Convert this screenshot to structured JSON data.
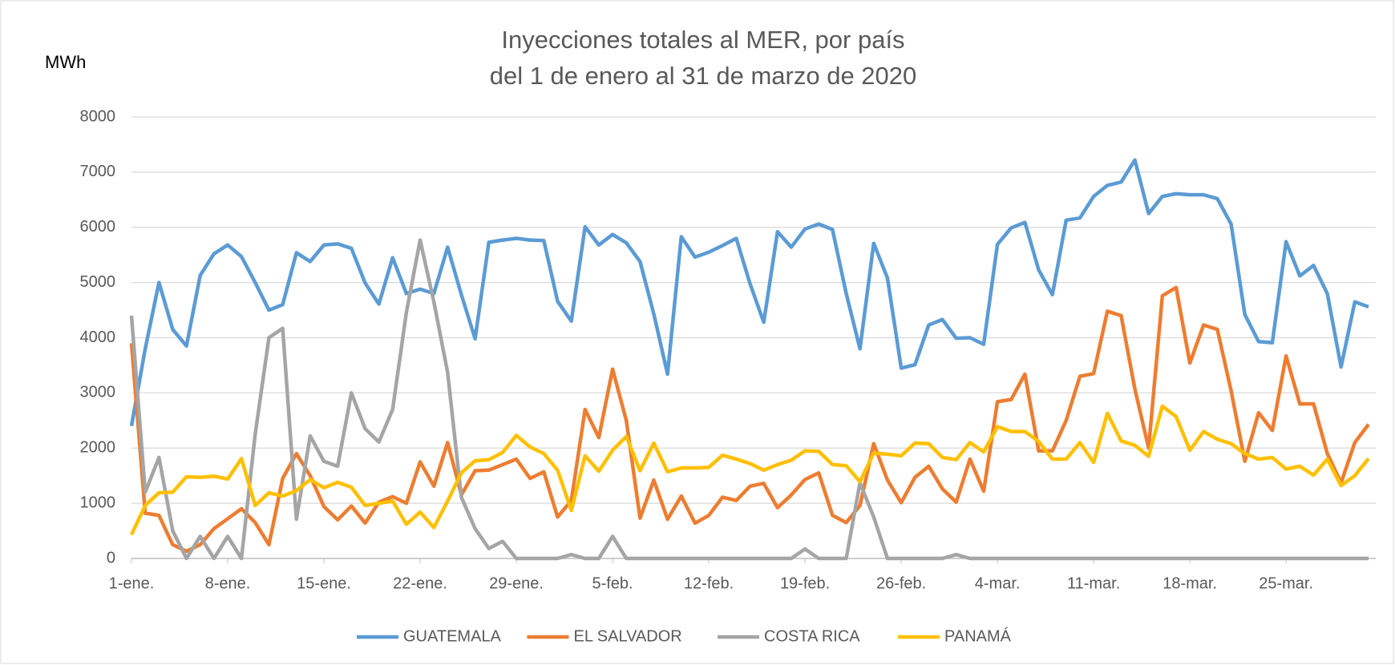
{
  "chart_data": {
    "type": "line",
    "title": "Inyecciones totales al MER, por país",
    "subtitle": "del 1 de enero al 31 de marzo de 2020",
    "y_label": "MWh",
    "categories": [
      "1-ene.",
      null,
      null,
      null,
      null,
      null,
      null,
      "8-ene.",
      null,
      null,
      null,
      null,
      null,
      null,
      "15-ene.",
      null,
      null,
      null,
      null,
      null,
      null,
      "22-ene.",
      null,
      null,
      null,
      null,
      null,
      null,
      "29-ene.",
      null,
      null,
      null,
      null,
      null,
      null,
      "5-feb.",
      null,
      null,
      null,
      null,
      null,
      null,
      "12-feb.",
      null,
      null,
      null,
      null,
      null,
      null,
      "19-feb.",
      null,
      null,
      null,
      null,
      null,
      null,
      "26-feb.",
      null,
      null,
      null,
      null,
      null,
      null,
      "4-mar.",
      null,
      null,
      null,
      null,
      null,
      null,
      "11-mar.",
      null,
      null,
      null,
      null,
      null,
      null,
      "18-mar.",
      null,
      null,
      null,
      null,
      null,
      null,
      "25-mar.",
      null,
      null,
      null,
      null,
      null,
      null
    ],
    "series": [
      {
        "name": "GUATEMALA",
        "color": "#5b9bd5",
        "values": [
          2400,
          3800,
          5000,
          4150,
          3850,
          5130,
          5520,
          5680,
          5470,
          5000,
          4500,
          4600,
          5540,
          5380,
          5680,
          5700,
          5620,
          4990,
          4610,
          5450,
          4800,
          4880,
          4800,
          5640,
          4780,
          3980,
          5730,
          5770,
          5800,
          5770,
          5760,
          4660,
          4300,
          6010,
          5680,
          5870,
          5720,
          5380,
          4430,
          3340,
          5830,
          5460,
          5550,
          5670,
          5800,
          4980,
          4280,
          5920,
          5640,
          5970,
          6060,
          5960,
          4800,
          3800,
          5710,
          5080,
          3450,
          3510,
          4230,
          4330,
          3990,
          4000,
          3880,
          5690,
          5990,
          6090,
          5230,
          4780,
          6130,
          6170,
          6560,
          6760,
          6820,
          7220,
          6250,
          6560,
          6610,
          6590,
          6590,
          6520,
          6060,
          4420,
          3930,
          3910,
          5740,
          5120,
          5310,
          4800,
          3470,
          4650,
          4560
        ]
      },
      {
        "name": "EL SALVADOR",
        "color": "#ed7d31",
        "values": [
          3900,
          820,
          780,
          250,
          130,
          250,
          540,
          720,
          900,
          650,
          250,
          1450,
          1900,
          1500,
          940,
          700,
          950,
          640,
          1020,
          1120,
          1000,
          1750,
          1310,
          2100,
          1150,
          1590,
          1600,
          1700,
          1800,
          1450,
          1570,
          750,
          1050,
          2700,
          2190,
          3430,
          2500,
          730,
          1420,
          710,
          1130,
          640,
          780,
          1110,
          1050,
          1310,
          1360,
          920,
          1150,
          1430,
          1550,
          780,
          650,
          960,
          2080,
          1420,
          1010,
          1470,
          1670,
          1260,
          1020,
          1800,
          1220,
          2840,
          2880,
          3340,
          1950,
          1950,
          2500,
          3300,
          3350,
          4480,
          4400,
          3070,
          2000,
          4760,
          4910,
          3540,
          4230,
          4150,
          3040,
          1760,
          2640,
          2320,
          3670,
          2800,
          2800,
          1900,
          1370,
          2100,
          2430
        ]
      },
      {
        "name": "COSTA RICA",
        "color": "#a5a5a5",
        "values": [
          4400,
          1200,
          1830,
          500,
          0,
          400,
          0,
          400,
          0,
          2250,
          4000,
          4170,
          710,
          2220,
          1760,
          1670,
          3000,
          2350,
          2110,
          2700,
          4460,
          5770,
          4650,
          3370,
          1110,
          540,
          180,
          310,
          0,
          0,
          0,
          0,
          70,
          0,
          0,
          400,
          0,
          0,
          0,
          0,
          0,
          0,
          0,
          0,
          0,
          0,
          0,
          0,
          0,
          170,
          0,
          0,
          0,
          1370,
          750,
          0,
          0,
          0,
          0,
          0,
          70,
          0,
          0,
          0,
          0,
          0,
          0,
          0,
          0,
          0,
          0,
          0,
          0,
          0,
          0,
          0,
          0,
          0,
          0,
          0,
          0,
          0,
          0,
          0,
          0,
          0,
          0,
          0,
          0,
          0,
          0
        ]
      },
      {
        "name": "PANAMÁ",
        "color": "#ffc000",
        "values": [
          430,
          960,
          1190,
          1200,
          1480,
          1470,
          1490,
          1440,
          1810,
          960,
          1190,
          1130,
          1230,
          1430,
          1280,
          1380,
          1290,
          960,
          1000,
          1040,
          620,
          840,
          560,
          1040,
          1550,
          1770,
          1790,
          1920,
          2230,
          2020,
          1900,
          1600,
          870,
          1860,
          1580,
          1960,
          2210,
          1590,
          2090,
          1570,
          1640,
          1640,
          1650,
          1870,
          1800,
          1720,
          1600,
          1700,
          1780,
          1950,
          1940,
          1700,
          1680,
          1390,
          1910,
          1890,
          1860,
          2090,
          2080,
          1830,
          1790,
          2100,
          1930,
          2390,
          2300,
          2300,
          2120,
          1800,
          1800,
          2100,
          1740,
          2630,
          2130,
          2050,
          1850,
          2760,
          2570,
          1960,
          2300,
          2160,
          2080,
          1900,
          1800,
          1830,
          1620,
          1670,
          1510,
          1800,
          1320,
          1500,
          1810
        ]
      }
    ],
    "ylim": [
      0,
      8000
    ],
    "yticks": [
      0,
      1000,
      2000,
      3000,
      4000,
      5000,
      6000,
      7000,
      8000
    ],
    "grid": true,
    "legend": "bottom"
  }
}
